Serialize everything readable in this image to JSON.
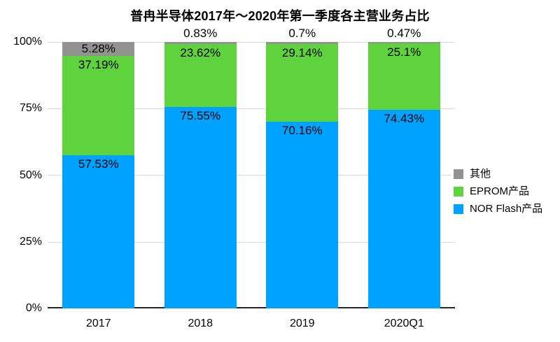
{
  "chart_data": {
    "type": "bar",
    "stacked": true,
    "title": "普冉半导体2017年～2020年第一季度各主营业务占比",
    "categories": [
      "2017",
      "2018",
      "2019",
      "2020Q1"
    ],
    "series": [
      {
        "name": "NOR Flash产品",
        "slug": "nor-flash",
        "color": "#00A2FF",
        "values": [
          57.53,
          75.55,
          70.16,
          74.43
        ],
        "labels": [
          "57.53%",
          "75.55%",
          "70.16%",
          "74.43%"
        ]
      },
      {
        "name": "EPROM产品",
        "slug": "eprom",
        "color": "#5FD33E",
        "values": [
          37.19,
          23.62,
          29.14,
          25.1
        ],
        "labels": [
          "37.19%",
          "23.62%",
          "29.14%",
          "25.1%"
        ]
      },
      {
        "name": "其他",
        "slug": "other",
        "color": "#929292",
        "values": [
          5.28,
          0.83,
          0.7,
          0.47
        ],
        "labels": [
          "5.28%",
          "0.83%",
          "0.7%",
          "0.47%"
        ]
      }
    ],
    "ylim": [
      0,
      100
    ],
    "yticks": [
      "0%",
      "25%",
      "50%",
      "75%",
      "100%"
    ],
    "grid": true,
    "legend_position": "right",
    "legend_order_top_to_bottom": [
      "其他",
      "EPROM产品",
      "NOR Flash产品"
    ]
  }
}
